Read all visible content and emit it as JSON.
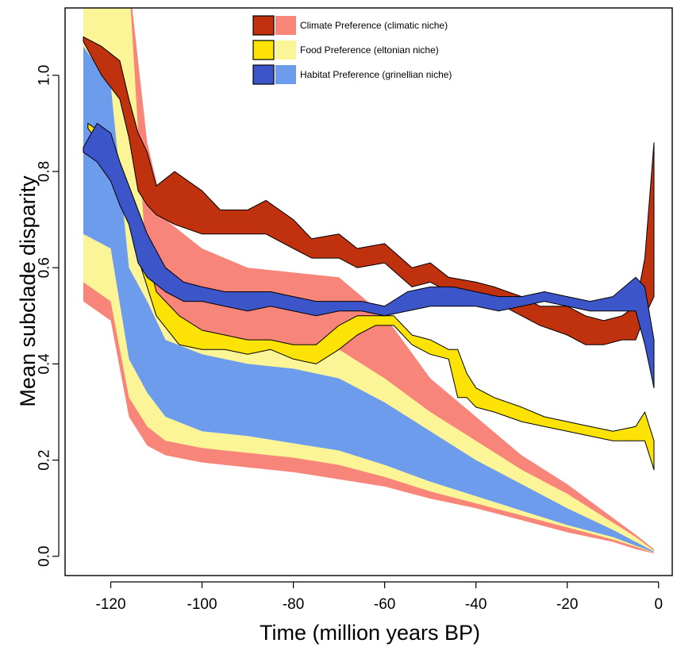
{
  "chart_data": {
    "type": "area",
    "xlabel": "Time (million years BP)",
    "ylabel": "Mean subclade disparity",
    "xlim": [
      -130,
      3
    ],
    "ylim": [
      -0.04,
      1.14
    ],
    "xticks": [
      -120,
      -100,
      -80,
      -60,
      -40,
      -20,
      0
    ],
    "yticks": [
      0.0,
      0.2,
      0.4,
      0.6,
      0.8,
      1.0
    ],
    "ytick_labels": [
      "0.0",
      "0.2",
      "0.4",
      "0.6",
      "0.8",
      "1.0"
    ],
    "legend_position": "top",
    "series": [
      {
        "name": "Climate Preference (climatic niche)",
        "dark_color": "#c0310e",
        "light_color": "#f7857a",
        "envelope": {
          "x": [
            -126,
            -120,
            -116,
            -112,
            -108,
            -100,
            -90,
            -80,
            -70,
            -60,
            -50,
            -40,
            -30,
            -20,
            -10,
            -5,
            -1
          ],
          "upper": [
            1.2,
            1.2,
            1.2,
            0.86,
            0.7,
            0.64,
            0.6,
            0.59,
            0.58,
            0.5,
            0.37,
            0.29,
            0.21,
            0.15,
            0.08,
            0.045,
            0.015
          ],
          "lower": [
            0.53,
            0.49,
            0.29,
            0.23,
            0.21,
            0.195,
            0.185,
            0.175,
            0.16,
            0.145,
            0.12,
            0.1,
            0.075,
            0.05,
            0.03,
            0.015,
            0.006
          ]
        },
        "observed": {
          "x": [
            -126,
            -122,
            -118,
            -116,
            -114,
            -112,
            -110,
            -106,
            -100,
            -96,
            -90,
            -86,
            -80,
            -76,
            -70,
            -66,
            -60,
            -54,
            -50,
            -46,
            -40,
            -36,
            -30,
            -26,
            -20,
            -16,
            -12,
            -8,
            -5,
            -3,
            -1
          ],
          "upper": [
            1.08,
            1.06,
            1.03,
            0.95,
            0.88,
            0.84,
            0.77,
            0.8,
            0.76,
            0.72,
            0.72,
            0.74,
            0.7,
            0.66,
            0.67,
            0.64,
            0.65,
            0.6,
            0.61,
            0.58,
            0.57,
            0.56,
            0.54,
            0.52,
            0.52,
            0.5,
            0.49,
            0.5,
            0.52,
            0.62,
            0.86
          ],
          "lower": [
            1.07,
            1.0,
            0.95,
            0.87,
            0.76,
            0.73,
            0.71,
            0.69,
            0.67,
            0.67,
            0.67,
            0.67,
            0.64,
            0.62,
            0.62,
            0.6,
            0.61,
            0.56,
            0.57,
            0.55,
            0.54,
            0.53,
            0.5,
            0.48,
            0.46,
            0.44,
            0.44,
            0.45,
            0.45,
            0.5,
            0.54
          ]
        }
      },
      {
        "name": "Food Preference (eltonian niche)",
        "dark_color": "#fce205",
        "light_color": "#fcf597",
        "envelope": {
          "x": [
            -126,
            -120,
            -116,
            -112,
            -108,
            -100,
            -90,
            -80,
            -70,
            -60,
            -50,
            -40,
            -30,
            -20,
            -10,
            -5,
            -1
          ],
          "upper": [
            1.2,
            1.2,
            1.2,
            0.57,
            0.5,
            0.46,
            0.45,
            0.44,
            0.43,
            0.37,
            0.3,
            0.24,
            0.18,
            0.13,
            0.07,
            0.04,
            0.012
          ],
          "lower": [
            0.57,
            0.53,
            0.33,
            0.27,
            0.24,
            0.225,
            0.215,
            0.205,
            0.19,
            0.165,
            0.135,
            0.11,
            0.085,
            0.06,
            0.035,
            0.02,
            0.007
          ]
        },
        "observed": {
          "x": [
            -125,
            -122,
            -118,
            -116,
            -114,
            -110,
            -105,
            -100,
            -95,
            -90,
            -85,
            -80,
            -75,
            -70,
            -66,
            -62,
            -58,
            -54,
            -50,
            -46,
            -44,
            -42,
            -40,
            -36,
            -30,
            -25,
            -20,
            -15,
            -10,
            -5,
            -3,
            -1
          ],
          "upper": [
            0.9,
            0.88,
            0.8,
            0.75,
            0.7,
            0.55,
            0.5,
            0.47,
            0.46,
            0.45,
            0.45,
            0.44,
            0.44,
            0.48,
            0.5,
            0.5,
            0.5,
            0.46,
            0.45,
            0.43,
            0.43,
            0.38,
            0.35,
            0.33,
            0.31,
            0.29,
            0.28,
            0.27,
            0.26,
            0.27,
            0.3,
            0.24
          ],
          "lower": [
            0.89,
            0.85,
            0.76,
            0.71,
            0.62,
            0.5,
            0.44,
            0.43,
            0.43,
            0.42,
            0.43,
            0.41,
            0.4,
            0.43,
            0.46,
            0.48,
            0.48,
            0.44,
            0.42,
            0.41,
            0.33,
            0.33,
            0.31,
            0.3,
            0.28,
            0.27,
            0.26,
            0.25,
            0.24,
            0.24,
            0.24,
            0.18
          ]
        }
      },
      {
        "name": "Habitat Preference (grinellian niche)",
        "dark_color": "#3c55c8",
        "light_color": "#6d9cec",
        "envelope": {
          "x": [
            -126,
            -120,
            -116,
            -112,
            -108,
            -100,
            -90,
            -80,
            -70,
            -60,
            -50,
            -40,
            -30,
            -20,
            -10,
            -5,
            -1
          ],
          "upper": [
            1.06,
            0.98,
            0.6,
            0.53,
            0.45,
            0.42,
            0.4,
            0.39,
            0.37,
            0.32,
            0.26,
            0.2,
            0.15,
            0.1,
            0.055,
            0.03,
            0.01
          ],
          "lower": [
            0.67,
            0.64,
            0.41,
            0.34,
            0.29,
            0.26,
            0.25,
            0.235,
            0.22,
            0.19,
            0.155,
            0.125,
            0.095,
            0.065,
            0.04,
            0.022,
            0.008
          ]
        },
        "observed": {
          "x": [
            -126,
            -123,
            -120,
            -118,
            -116,
            -114,
            -112,
            -108,
            -104,
            -100,
            -95,
            -90,
            -85,
            -80,
            -75,
            -70,
            -65,
            -60,
            -55,
            -50,
            -45,
            -40,
            -35,
            -30,
            -25,
            -20,
            -15,
            -10,
            -5,
            -3,
            -1
          ],
          "upper": [
            0.85,
            0.9,
            0.88,
            0.82,
            0.77,
            0.72,
            0.67,
            0.6,
            0.57,
            0.56,
            0.55,
            0.55,
            0.55,
            0.54,
            0.53,
            0.53,
            0.53,
            0.52,
            0.55,
            0.56,
            0.56,
            0.55,
            0.54,
            0.54,
            0.55,
            0.54,
            0.53,
            0.54,
            0.58,
            0.56,
            0.45
          ],
          "lower": [
            0.84,
            0.82,
            0.78,
            0.73,
            0.69,
            0.61,
            0.58,
            0.55,
            0.53,
            0.53,
            0.52,
            0.51,
            0.52,
            0.51,
            0.5,
            0.51,
            0.51,
            0.5,
            0.51,
            0.52,
            0.52,
            0.52,
            0.51,
            0.52,
            0.53,
            0.52,
            0.51,
            0.51,
            0.51,
            0.44,
            0.35
          ]
        }
      }
    ]
  }
}
